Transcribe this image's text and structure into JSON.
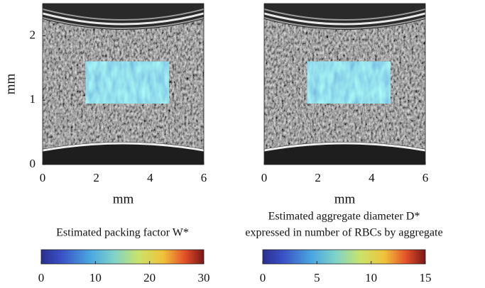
{
  "chart_data": [
    {
      "type": "image",
      "xlabel": "mm",
      "ylabel": "mm",
      "xlim": [
        0,
        6
      ],
      "ylim": [
        0,
        2.5
      ],
      "xticks": [
        0,
        2,
        4,
        6
      ],
      "yticks": [
        0,
        1,
        2
      ],
      "roi": {
        "x": [
          1.6,
          4.7
        ],
        "y": [
          0.95,
          1.6
        ]
      },
      "colorbar": {
        "label": [
          "Estimated packing factor W*"
        ],
        "lim": [
          0,
          30
        ],
        "ticks": [
          0,
          10,
          20,
          30
        ]
      }
    },
    {
      "type": "image",
      "xlabel": "mm",
      "xlim": [
        0,
        6
      ],
      "ylim": [
        0,
        2.5
      ],
      "xticks": [
        0,
        2,
        4,
        6
      ],
      "roi": {
        "x": [
          1.6,
          4.7
        ],
        "y": [
          0.95,
          1.6
        ]
      },
      "colorbar": {
        "label": [
          "Estimated aggregate diameter  D*",
          "expressed in number of RBCs by aggregate"
        ],
        "lim": [
          0,
          15
        ],
        "ticks": [
          0,
          5,
          10,
          15
        ]
      }
    }
  ]
}
